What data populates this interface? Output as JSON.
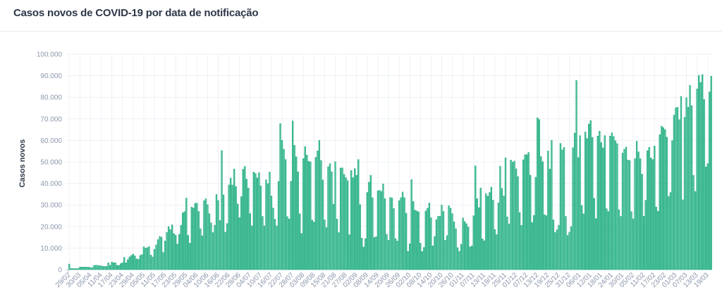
{
  "chart_data": {
    "type": "bar",
    "title": "Casos novos de COVID-19 por data de notificação",
    "xlabel": "",
    "ylabel": "Casos novos",
    "ylim": [
      0,
      100000
    ],
    "grid": true,
    "y_ticks": [
      "0",
      "10.000",
      "20.000",
      "30.000",
      "40.000",
      "50.000",
      "60.000",
      "70.000",
      "80.000",
      "90.000",
      "100.000"
    ],
    "x_tick_every_n_bars": 6,
    "x_ticks": [
      "29/02",
      "30/03",
      "05/04",
      "11/04",
      "17/04",
      "23/04",
      "29/04",
      "05/05",
      "11/05",
      "17/05",
      "23/05",
      "29/05",
      "04/06",
      "10/06",
      "16/06",
      "22/06",
      "28/06",
      "04/07",
      "10/07",
      "16/07",
      "22/07",
      "28/07",
      "03/08",
      "09/08",
      "15/08",
      "21/08",
      "27/08",
      "02/09",
      "08/09",
      "14/09",
      "20/09",
      "26/09",
      "02/10",
      "08/10",
      "14/10",
      "20/10",
      "26/10",
      "01/11",
      "07/11",
      "13/11",
      "19/11",
      "25/11",
      "01/12",
      "07/12",
      "13/12",
      "19/12",
      "25/12",
      "31/12",
      "06/01",
      "12/01",
      "18/01",
      "24/01",
      "30/01",
      "05/02",
      "11/02",
      "17/02",
      "23/02",
      "01/03",
      "07/03",
      "13/03",
      "19/03"
    ],
    "values_thousands": [
      2.6,
      0.5,
      0.5,
      0.5,
      0.5,
      0.5,
      1.2,
      1.2,
      1.2,
      1.2,
      1.2,
      1.2,
      0.9,
      0.9,
      2,
      2,
      2,
      1.8,
      1.8,
      1.5,
      1.5,
      1.5,
      3.2,
      2,
      3.5,
      3.2,
      3.2,
      2,
      2,
      2.8,
      3.2,
      5.7,
      3.2,
      4.7,
      5.9,
      6.6,
      7.2,
      6.4,
      5,
      4.8,
      6.6,
      7,
      10.6,
      10,
      10.2,
      10.7,
      6.8,
      5.9,
      9.4,
      11.5,
      13.9,
      15.4,
      15.1,
      8,
      13.3,
      17.3,
      20,
      18.6,
      20.8,
      16.8,
      16,
      11.9,
      16.4,
      20.6,
      26.4,
      26.9,
      33.2,
      15.9,
      12.3,
      29,
      28.6,
      30.8,
      30.8,
      27,
      19,
      15.7,
      32,
      32.9,
      30.2,
      26,
      21.7,
      17.2,
      20.6,
      34.9,
      32.1,
      22.8,
      55.3,
      34.7,
      17.4,
      21.4,
      39.3,
      42.5,
      39.3,
      46.7,
      38.6,
      30.5,
      24.1,
      33.9,
      46.6,
      47.9,
      42,
      37.9,
      26,
      20.3,
      45.3,
      44.6,
      42.6,
      45,
      38.9,
      24.7,
      20.3,
      41.7,
      39.9,
      45.3,
      34.2,
      28.6,
      23.4,
      20.3,
      41,
      67.8,
      60,
      55.9,
      51.1,
      24.6,
      23.5,
      41,
      69,
      57.7,
      52.4,
      45.4,
      25.9,
      16.8,
      51.5,
      57.1,
      53.2,
      50.3,
      50,
      23,
      22.1,
      52.1,
      55.1,
      60,
      50.7,
      41.6,
      23.1,
      19.5,
      47.8,
      49.2,
      45.4,
      30.4,
      50.1,
      23.5,
      17.2,
      47.2,
      47.2,
      44.2,
      42.7,
      41.3,
      16.2,
      46,
      42.7,
      46.9,
      43.8,
      51.1,
      30.2,
      14.6,
      10.5,
      14.4,
      35.8,
      40.6,
      43.8,
      33.4,
      14.9,
      15.3,
      36.6,
      36.8,
      36.3,
      39.8,
      33,
      16.4,
      13.6,
      33.5,
      33.3,
      28.4,
      14.4,
      13.3,
      32,
      33.4,
      36,
      33.4,
      26.2,
      8.5,
      12,
      41.8,
      31.6,
      27.6,
      27.2,
      26.8,
      12.3,
      8.4,
      10.3,
      27.2,
      28.5,
      30.9,
      24.1,
      11,
      15.4,
      23.2,
      24.8,
      24.8,
      30,
      27,
      13.6,
      15.8,
      29.7,
      28.6,
      26,
      22.2,
      19,
      10.2,
      8.5,
      11.8,
      24,
      22.3,
      21.3,
      19.8,
      10.6,
      11,
      25,
      48.2,
      32.9,
      28.8,
      37.9,
      14.3,
      13.4,
      35.3,
      34.1,
      35.8,
      38.3,
      32.3,
      18.6,
      16.3,
      31,
      48,
      37.7,
      34.2,
      51.9,
      24.5,
      21.2,
      50.9,
      49.9,
      50.4,
      46.8,
      43.2,
      26.5,
      20.5,
      51,
      53.4,
      53.3,
      54.4,
      43.9,
      21.9,
      25.2,
      42.9,
      70.5,
      69.7,
      52.5,
      50.1,
      25.5,
      25.1,
      55.1,
      46.7,
      60,
      23.1,
      17.3,
      18.5,
      20.6,
      58.6,
      55.6,
      56.8,
      24.7,
      15.9,
      17.4,
      20,
      56.6,
      63.4,
      87.8,
      52,
      62.2,
      29.8,
      25.9,
      63.9,
      60.9,
      67.6,
      69.2,
      61.4,
      33.1,
      23.7,
      62,
      64.3,
      59,
      56.5,
      62.2,
      28.3,
      27,
      62,
      63.5,
      61.8,
      59.8,
      58.5,
      27.8,
      24.7,
      54.1,
      55.9,
      56.9,
      50.9,
      50.7,
      26.9,
      23.6,
      51.5,
      59.6,
      54.7,
      51.5,
      44.3,
      24.8,
      32.2,
      55.2,
      56.8,
      51.9,
      51.1,
      57.4,
      29.1,
      27.1,
      62.7,
      66.6,
      65.9,
      65,
      61.5,
      34,
      35.8,
      59.9,
      71.7,
      75.1,
      75.4,
      69.6,
      80.4,
      32.4,
      70.7,
      79.8,
      75.4,
      85.5,
      76.1,
      43.8,
      36.3,
      83.9,
      90.2,
      86.9,
      90.5,
      79,
      47.7,
      49.2,
      82.5,
      89.8
    ],
    "colors": {
      "bar_fill": "#4fc39b",
      "bar_stroke": "#14a47a",
      "grid": "#edf1f6",
      "tick_text": "#8a97ab"
    }
  }
}
